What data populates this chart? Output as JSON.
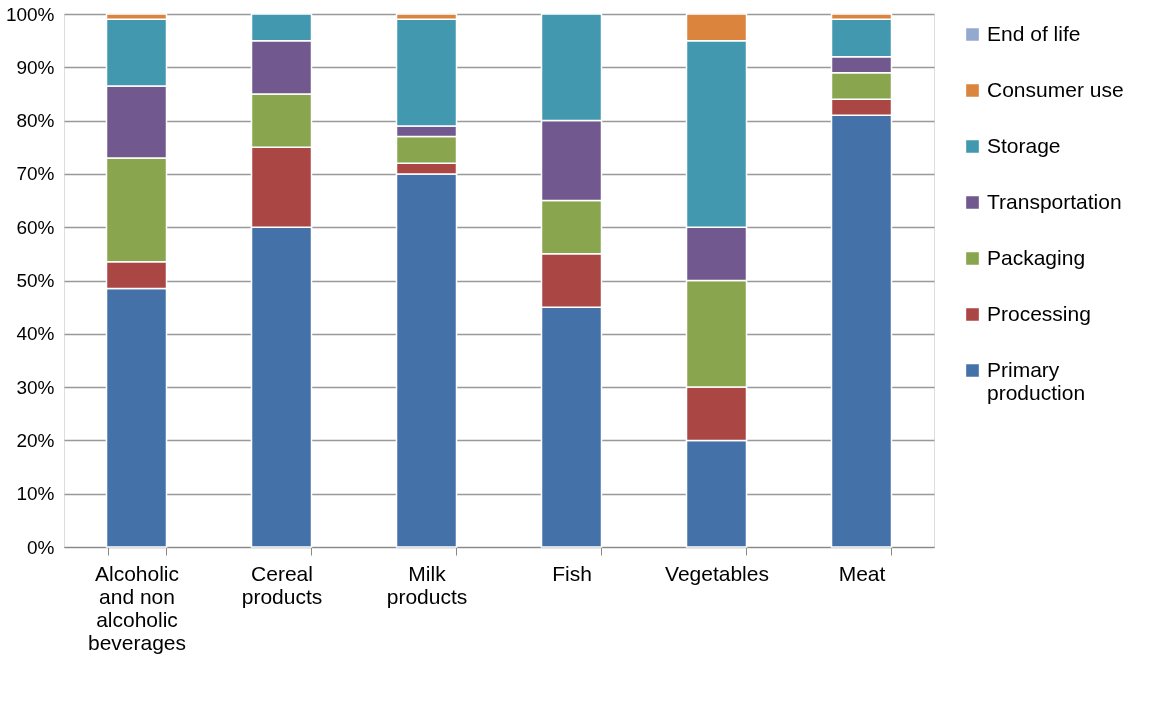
{
  "chart_data": {
    "type": "bar",
    "stacked": true,
    "categories": [
      "Alcoholic and non alcoholic beverages",
      "Cereal products",
      "Milk products",
      "Fish",
      "Vegetables",
      "Meat"
    ],
    "series": [
      {
        "name": "Primary production",
        "color": "#4472a8",
        "values": [
          48.5,
          60,
          70,
          45,
          20,
          81
        ]
      },
      {
        "name": "Processing",
        "color": "#aa4644",
        "values": [
          5,
          15,
          2,
          10,
          10,
          3
        ]
      },
      {
        "name": "Packaging",
        "color": "#89a54e",
        "values": [
          19.5,
          10,
          5,
          10,
          20,
          5
        ]
      },
      {
        "name": "Transportation",
        "color": "#71588f",
        "values": [
          13.5,
          10,
          2,
          15,
          10,
          3
        ]
      },
      {
        "name": "Storage",
        "color": "#4198af",
        "values": [
          12.5,
          5,
          20,
          20,
          35,
          7
        ]
      },
      {
        "name": "Consumer use",
        "color": "#db843d",
        "values": [
          1,
          null,
          1,
          null,
          5,
          1
        ]
      },
      {
        "name": "End of life",
        "color": "#93a9cf",
        "values": [
          null,
          null,
          null,
          null,
          null,
          null
        ]
      }
    ],
    "ylim": [
      0,
      100
    ],
    "yticks": [
      {
        "value": 0,
        "label": "0%"
      },
      {
        "value": 10,
        "label": "10%"
      },
      {
        "value": 20,
        "label": "20%"
      },
      {
        "value": 30,
        "label": "30%"
      },
      {
        "value": 40,
        "label": "40%"
      },
      {
        "value": 50,
        "label": "50%"
      },
      {
        "value": 60,
        "label": "60%"
      },
      {
        "value": 70,
        "label": "70%"
      },
      {
        "value": 80,
        "label": "80%"
      },
      {
        "value": 90,
        "label": "90%"
      },
      {
        "value": 100,
        "label": "100%"
      }
    ],
    "grid": "y",
    "legend": "right"
  }
}
